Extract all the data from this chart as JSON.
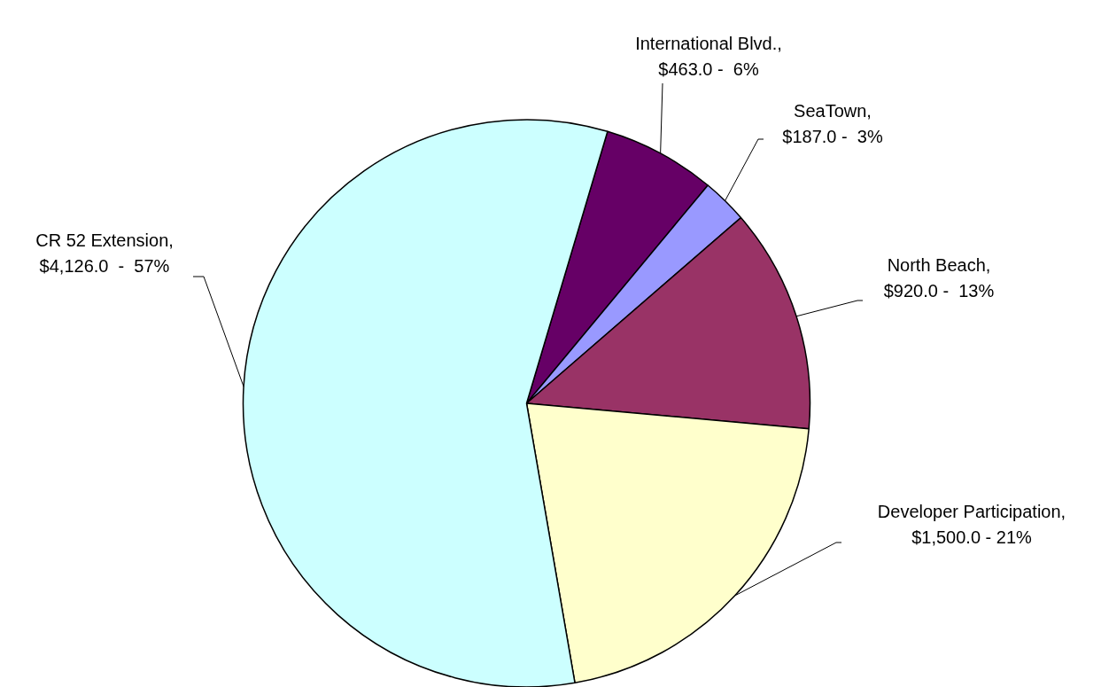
{
  "chart_data": {
    "type": "pie",
    "categories": [
      "International Blvd.",
      "SeaTown",
      "North Beach",
      "Developer Participation",
      "CR 52 Extension"
    ],
    "values": [
      463.0,
      187.0,
      920.0,
      1500.0,
      4126.0
    ],
    "colors": [
      "#660066",
      "#9999ff",
      "#993366",
      "#ffffcc",
      "#ccffff"
    ],
    "value_labels": [
      ",\n$463.0 -  6%",
      ",\n$187.0 -  3%",
      ",\n$920.0 -  13%",
      ",\n$1,500.0 - 21%",
      ",\n$4,126.0  -  57%"
    ],
    "legend": false
  }
}
